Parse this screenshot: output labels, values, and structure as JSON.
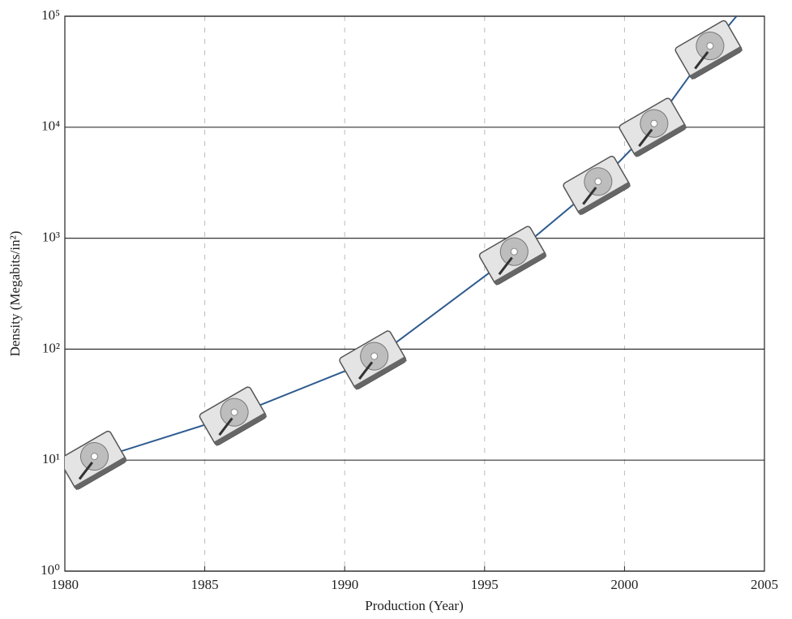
{
  "chart_data": {
    "type": "line",
    "xlabel": "Production (Year)",
    "ylabel": "Density (Megabits/in²)",
    "yscale": "log",
    "grid": true,
    "xlim": [
      1980,
      2005
    ],
    "xticks": [
      1980,
      1985,
      1990,
      1995,
      2000,
      2005
    ],
    "ylim": [
      1,
      100000
    ],
    "yticks": [
      {
        "value": 1,
        "label": "10⁰"
      },
      {
        "value": 10,
        "label": "10¹"
      },
      {
        "value": 100,
        "label": "10²"
      },
      {
        "value": 1000,
        "label": "10³"
      },
      {
        "value": 10000,
        "label": "10⁴"
      },
      {
        "value": 100000,
        "label": "10⁵"
      }
    ],
    "series": [
      {
        "color": "#2e5b8f",
        "x": [
          1981,
          1986,
          1991,
          1996,
          1999,
          2001,
          2003,
          2004
        ],
        "values": [
          10,
          25,
          80,
          700,
          3000,
          10000,
          50000,
          100000
        ]
      }
    ],
    "markers": {
      "x": [
        1981,
        1986,
        1991,
        1996,
        1999,
        2001,
        2003
      ],
      "values": [
        10,
        25,
        80,
        700,
        3000,
        10000,
        50000
      ]
    }
  }
}
